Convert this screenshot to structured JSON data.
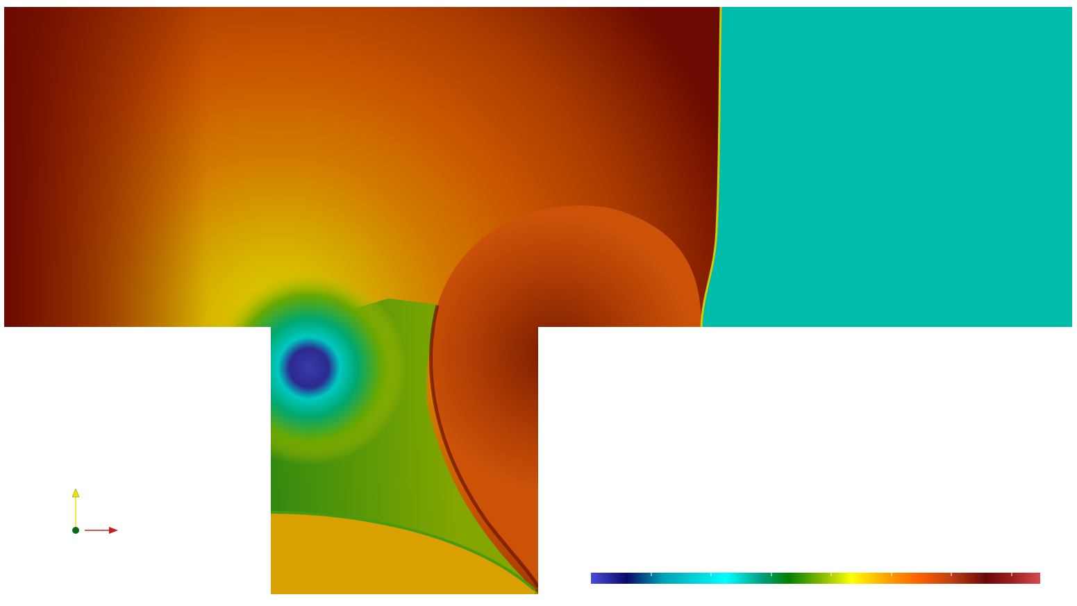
{
  "viewer": {
    "description_free": true,
    "orientation_axes": {
      "y_axis_color": "#f0e000",
      "x_axis_color": "#cc1a1a",
      "origin_color": "#0a6a1a",
      "y_icon": "arrow-up-icon",
      "x_icon": "arrow-right-icon"
    },
    "colormap": {
      "stops": [
        "#4a4adc",
        "#0a0a6a",
        "#00a0b0",
        "#00ffff",
        "#00a080",
        "#008000",
        "#90c000",
        "#ffff00",
        "#ffa000",
        "#ff6000",
        "#c04010",
        "#6a0808",
        "#a02020",
        "#d84a4a"
      ],
      "tick_count": 8
    },
    "field_colors": {
      "background_fluid": "#00bcaa",
      "hot_left": "#6a0a00",
      "mid_orange": "#cc5400",
      "yellow": "#d2cc00",
      "green": "#4a9a10",
      "cyan": "#00c0b0",
      "vortex_core": "#3c3aa8",
      "bubble": "#c84a0a",
      "lower_arc": "#d8a000"
    }
  }
}
